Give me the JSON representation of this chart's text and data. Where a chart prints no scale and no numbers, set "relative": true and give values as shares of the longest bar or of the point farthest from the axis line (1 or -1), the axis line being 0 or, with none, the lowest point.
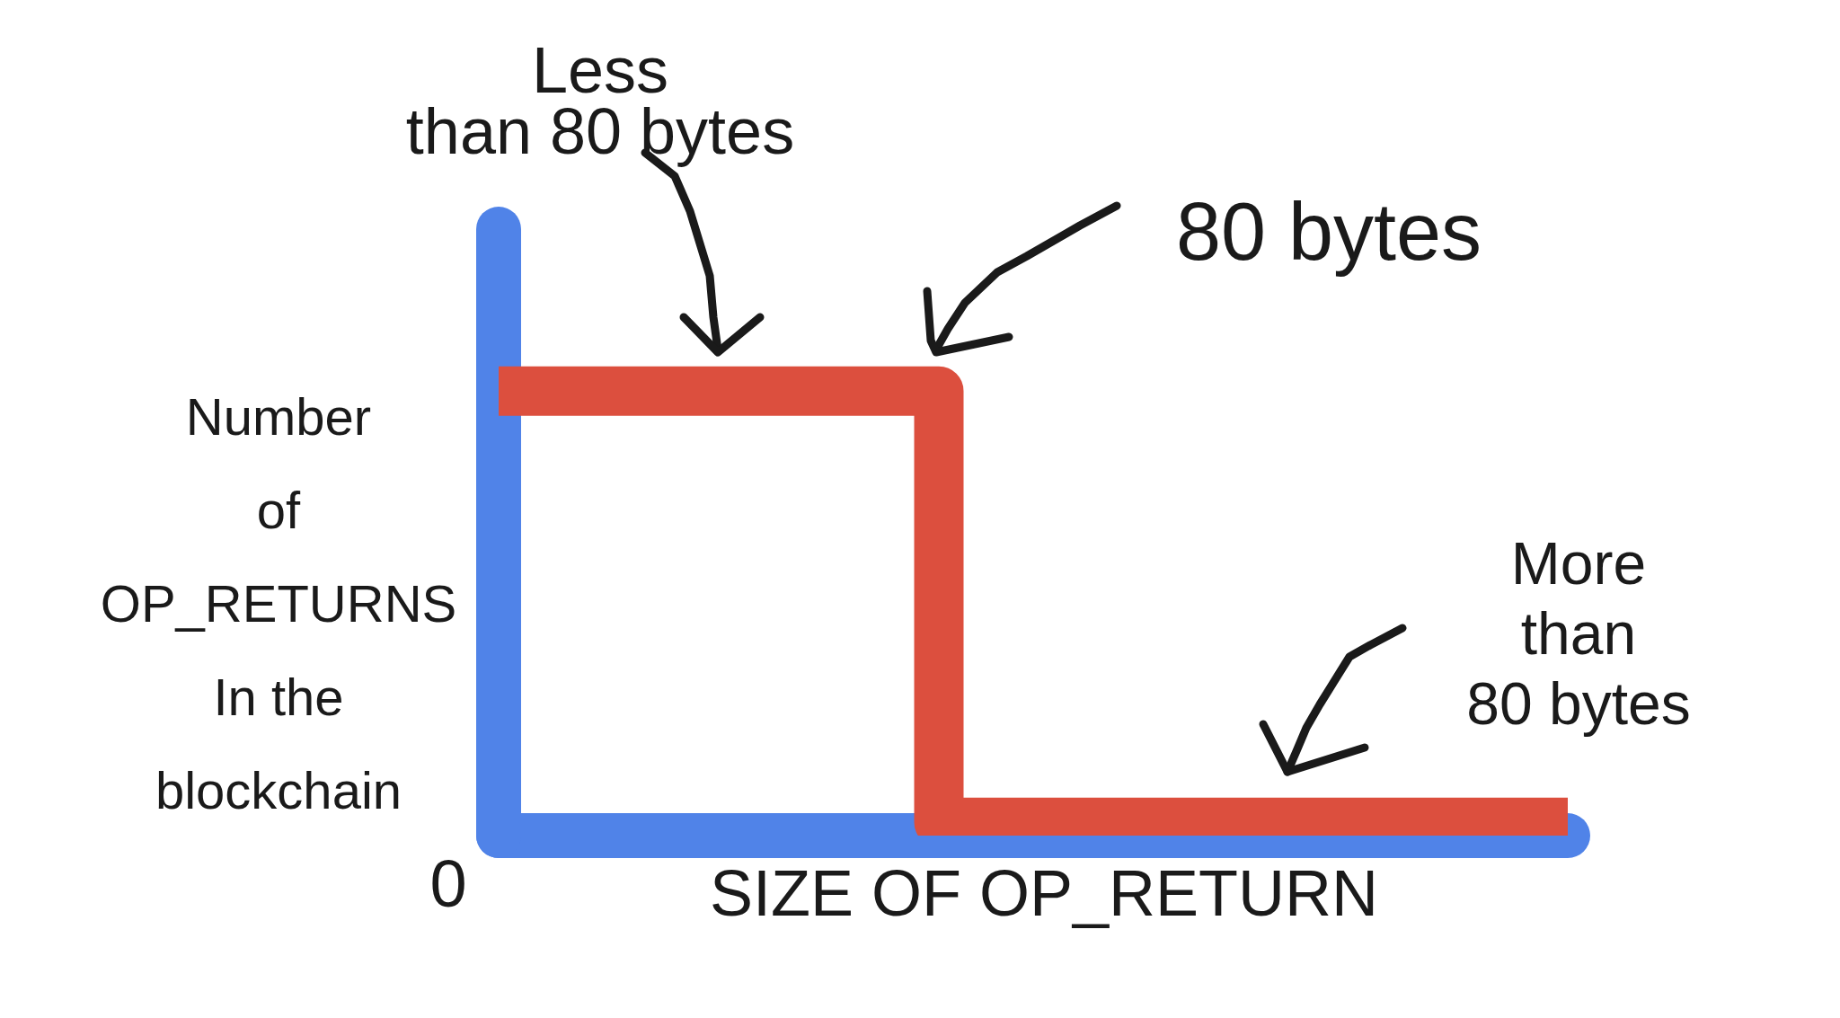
{
  "chart_data": {
    "type": "step",
    "xlabel": "SIZE OF OP_RETURN",
    "ylabel": "Number of OP_RETURNS In the blockchain",
    "categories": [
      null,
      null,
      null,
      null,
      null,
      null,
      null,
      null,
      null,
      null,
      null,
      null,
      null,
      null,
      null,
      null,
      null,
      null
    ],
    "values": [
      1,
      1,
      1,
      1,
      1,
      1,
      1,
      0.03,
      0.03,
      0.03,
      0.03,
      0.03,
      0.03,
      0.03,
      0.03,
      0.03,
      0.03,
      0.03
    ],
    "color": "#dc4f3e",
    "relative": true,
    "annotations": [
      "Less than 80 bytes",
      "80 bytes",
      "More than 80 bytes",
      "0"
    ]
  }
}
